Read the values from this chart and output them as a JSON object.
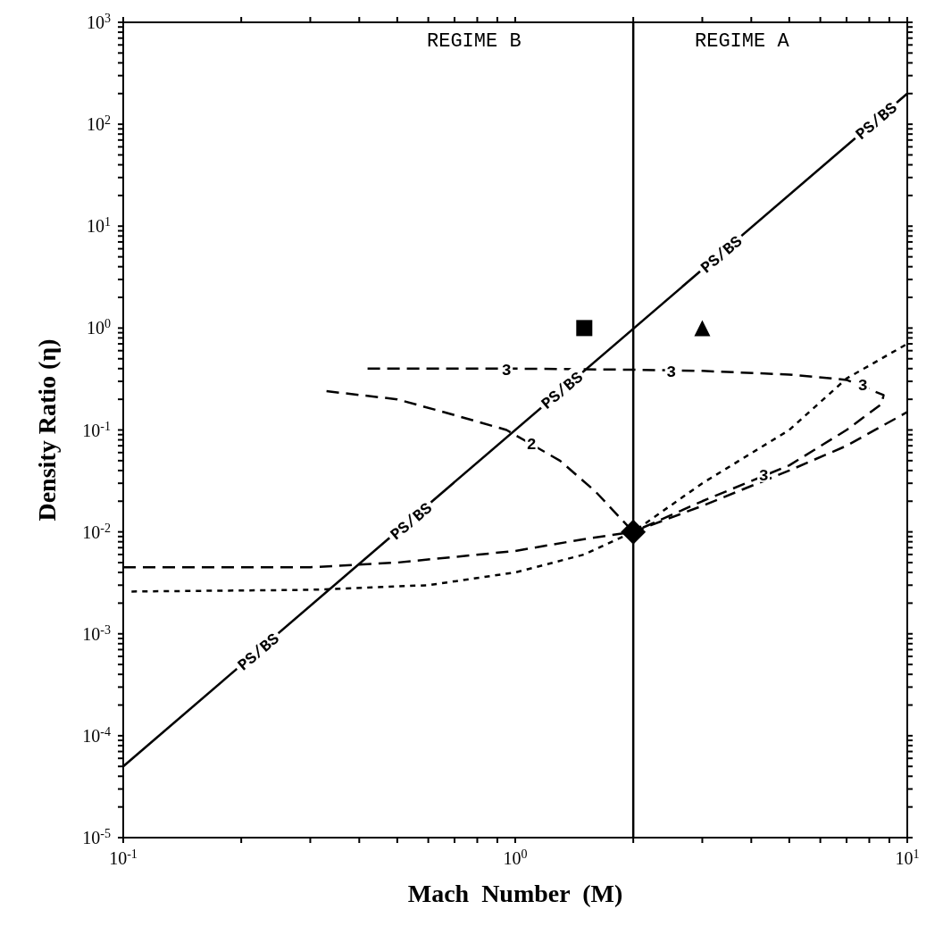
{
  "chart_data": {
    "type": "line",
    "xlabel": "Mach  Number  (M)",
    "ylabel": "Density Ratio (η)",
    "log": "xy",
    "grid": false,
    "legend": false,
    "xlim": [
      0.1,
      10
    ],
    "ylim": [
      1e-05,
      1000
    ],
    "xticks": [
      {
        "value": 0.1,
        "label": "10$^{-1}$"
      },
      {
        "value": 0.2,
        "label": null
      },
      {
        "value": 0.3,
        "label": null
      },
      {
        "value": 0.4,
        "label": null
      },
      {
        "value": 0.5,
        "label": null
      },
      {
        "value": 0.6,
        "label": null
      },
      {
        "value": 0.7,
        "label": null
      },
      {
        "value": 0.8,
        "label": null
      },
      {
        "value": 0.9,
        "label": null
      },
      {
        "value": 1,
        "label": "10$^{0}$"
      },
      {
        "value": 2,
        "label": null
      },
      {
        "value": 3,
        "label": null
      },
      {
        "value": 4,
        "label": null
      },
      {
        "value": 5,
        "label": null
      },
      {
        "value": 6,
        "label": null
      },
      {
        "value": 7,
        "label": null
      },
      {
        "value": 8,
        "label": null
      },
      {
        "value": 9,
        "label": null
      },
      {
        "value": 10,
        "label": "10$^{1}$"
      }
    ],
    "yticks": [
      {
        "value": 1e-05,
        "label": "10$^{-5}$"
      },
      {
        "value": 2e-05,
        "label": null
      },
      {
        "value": 3e-05,
        "label": null
      },
      {
        "value": 4e-05,
        "label": null
      },
      {
        "value": 5e-05,
        "label": null
      },
      {
        "value": 6e-05,
        "label": null
      },
      {
        "value": 7e-05,
        "label": null
      },
      {
        "value": 8e-05,
        "label": null
      },
      {
        "value": 9e-05,
        "label": null
      },
      {
        "value": 0.0001,
        "label": "10$^{-4}$"
      },
      {
        "value": 0.0002,
        "label": null
      },
      {
        "value": 0.0003,
        "label": null
      },
      {
        "value": 0.0004,
        "label": null
      },
      {
        "value": 0.0005,
        "label": null
      },
      {
        "value": 0.0006,
        "label": null
      },
      {
        "value": 0.0007,
        "label": null
      },
      {
        "value": 0.0008,
        "label": null
      },
      {
        "value": 0.0009,
        "label": null
      },
      {
        "value": 0.001,
        "label": "10$^{-3}$"
      },
      {
        "value": 0.002,
        "label": null
      },
      {
        "value": 0.003,
        "label": null
      },
      {
        "value": 0.004,
        "label": null
      },
      {
        "value": 0.005,
        "label": null
      },
      {
        "value": 0.006,
        "label": null
      },
      {
        "value": 0.007,
        "label": null
      },
      {
        "value": 0.008,
        "label": null
      },
      {
        "value": 0.009,
        "label": null
      },
      {
        "value": 0.01,
        "label": "10$^{-2}$"
      },
      {
        "value": 0.02,
        "label": null
      },
      {
        "value": 0.03,
        "label": null
      },
      {
        "value": 0.04,
        "label": null
      },
      {
        "value": 0.05,
        "label": null
      },
      {
        "value": 0.06,
        "label": null
      },
      {
        "value": 0.07,
        "label": null
      },
      {
        "value": 0.08,
        "label": null
      },
      {
        "value": 0.09,
        "label": null
      },
      {
        "value": 0.1,
        "label": "10$^{-1}$"
      },
      {
        "value": 0.2,
        "label": null
      },
      {
        "value": 0.3,
        "label": null
      },
      {
        "value": 0.4,
        "label": null
      },
      {
        "value": 0.5,
        "label": null
      },
      {
        "value": 0.6,
        "label": null
      },
      {
        "value": 0.7,
        "label": null
      },
      {
        "value": 0.8,
        "label": null
      },
      {
        "value": 0.9,
        "label": null
      },
      {
        "value": 1,
        "label": "10$^{0}$"
      },
      {
        "value": 2,
        "label": null
      },
      {
        "value": 3,
        "label": null
      },
      {
        "value": 4,
        "label": null
      },
      {
        "value": 5,
        "label": null
      },
      {
        "value": 6,
        "label": null
      },
      {
        "value": 7,
        "label": null
      },
      {
        "value": 8,
        "label": null
      },
      {
        "value": 9,
        "label": null
      },
      {
        "value": 10,
        "label": "10$^{1}$"
      },
      {
        "value": 20,
        "label": null
      },
      {
        "value": 30,
        "label": null
      },
      {
        "value": 40,
        "label": null
      },
      {
        "value": 50,
        "label": null
      },
      {
        "value": 60,
        "label": null
      },
      {
        "value": 70,
        "label": null
      },
      {
        "value": 80,
        "label": null
      },
      {
        "value": 90,
        "label": null
      },
      {
        "value": 100,
        "label": "10$^{2}$"
      },
      {
        "value": 200,
        "label": null
      },
      {
        "value": 300,
        "label": null
      },
      {
        "value": 400,
        "label": null
      },
      {
        "value": 500,
        "label": null
      },
      {
        "value": 600,
        "label": null
      },
      {
        "value": 700,
        "label": null
      },
      {
        "value": 800,
        "label": null
      },
      {
        "value": 900,
        "label": null
      },
      {
        "value": 1000,
        "label": "10$^{3}$"
      }
    ],
    "series": [
      {
        "line_style": "solid",
        "color": "#000000",
        "x": [
          0.1,
          10
        ],
        "values": [
          5e-05,
          200
        ]
      },
      {
        "line_style": "dashed",
        "color": "#000000",
        "x": [
          0.1,
          0.3,
          0.5,
          1,
          1.5,
          2,
          3,
          5,
          7,
          10
        ],
        "values": [
          0.0045,
          0.0045,
          0.005,
          0.0065,
          0.0085,
          0.01,
          0.018,
          0.04,
          0.07,
          0.15
        ]
      },
      {
        "line_style": "dotted",
        "color": "#000000",
        "x": [
          0.105,
          0.3,
          0.6,
          1,
          1.5,
          2,
          3,
          5,
          7,
          10
        ],
        "values": [
          0.0026,
          0.0027,
          0.003,
          0.004,
          0.006,
          0.01,
          0.03,
          0.1,
          0.32,
          0.7
        ]
      },
      {
        "line_style": "dashed",
        "color": "#000000",
        "x": [
          0.33,
          0.5,
          0.7,
          0.95,
          1.3,
          1.6,
          2
        ],
        "values": [
          0.24,
          0.2,
          0.14,
          0.1,
          0.05,
          0.025,
          0.01
        ]
      },
      {
        "line_style": "dashed",
        "color": "#000000",
        "x": [
          0.42,
          1,
          2,
          3,
          5,
          7,
          8.7,
          8.6,
          7,
          5,
          3,
          2
        ],
        "values": [
          0.4,
          0.4,
          0.39,
          0.38,
          0.35,
          0.31,
          0.22,
          0.18,
          0.1,
          0.045,
          0.02,
          0.01
        ]
      },
      {
        "type": "scatter",
        "marker": "square",
        "color": "#000000",
        "x": [
          1.5
        ],
        "values": [
          1
        ]
      },
      {
        "type": "scatter",
        "marker": "triangle",
        "color": "#000000",
        "x": [
          3
        ],
        "values": [
          1
        ]
      },
      {
        "type": "scatter",
        "marker": "diamond",
        "color": "#000000",
        "x": [
          2
        ],
        "values": [
          0.01
        ]
      }
    ],
    "ref_lines": [
      {
        "axis": "x",
        "value": 2,
        "color": "#000000",
        "line_style": "solid"
      }
    ],
    "annotations": [
      "REGIME B",
      "REGIME A",
      {
        "text": "PS/BS",
        "x": 0.22,
        "y": 0.00068
      },
      {
        "text": "PS/BS",
        "x": 0.54,
        "y": 0.013
      },
      {
        "text": "PS/BS",
        "x": 1.31,
        "y": 0.25
      },
      {
        "text": "PS/BS",
        "x": 3.34,
        "y": 5.4
      },
      {
        "text": "PS/BS",
        "x": 8.3,
        "y": 110
      },
      {
        "text": "3",
        "x": 0.95,
        "y": 0.4
      },
      {
        "text": "3",
        "x": 2.5,
        "y": 0.38
      },
      {
        "text": "3",
        "x": 7.7,
        "y": 0.28
      },
      {
        "text": "3",
        "x": 4.3,
        "y": 0.037
      },
      {
        "text": "2",
        "x": 1.1,
        "y": 0.075
      }
    ]
  }
}
